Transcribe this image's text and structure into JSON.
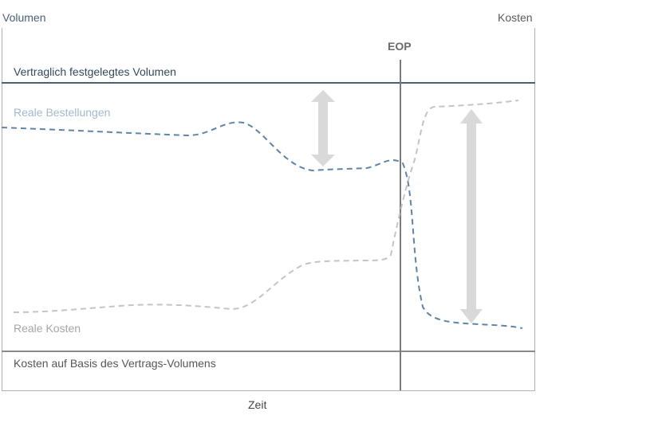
{
  "axes": {
    "left_label": "Volumen",
    "right_label": "Kosten",
    "x_label": "Zeit"
  },
  "markers": {
    "eop_label": "EOP"
  },
  "lines": {
    "contract_volume": "Vertraglich festgelegtes Volumen",
    "real_orders": "Reale Bestellungen",
    "real_costs": "Reale Kosten",
    "contract_costs": "Kosten auf Basis des Vertrags-Volumens"
  },
  "colors": {
    "contract_line": "#4a5f78",
    "orders_dash": "#5f84a8",
    "cost_dash": "#c4c4c4",
    "arrow": "#d9d9d9",
    "frame": "#a0a0a0",
    "eop_line": "#7a7a7a"
  }
}
